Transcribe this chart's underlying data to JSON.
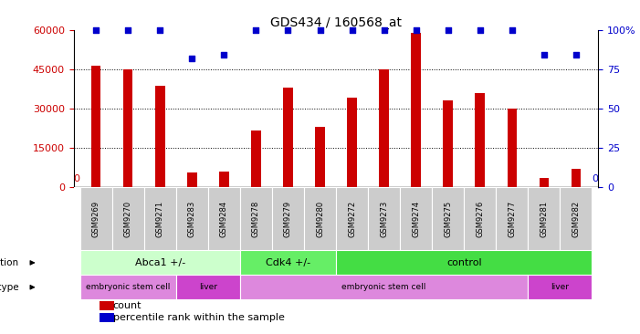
{
  "title": "GDS434 / 160568_at",
  "samples": [
    "GSM9269",
    "GSM9270",
    "GSM9271",
    "GSM9283",
    "GSM9284",
    "GSM9278",
    "GSM9279",
    "GSM9280",
    "GSM9272",
    "GSM9273",
    "GSM9274",
    "GSM9275",
    "GSM9276",
    "GSM9277",
    "GSM9281",
    "GSM9282"
  ],
  "counts": [
    46500,
    45000,
    38500,
    5500,
    6000,
    21500,
    38000,
    23000,
    34000,
    45000,
    59000,
    33000,
    36000,
    30000,
    3500,
    7000
  ],
  "percentiles": [
    100,
    100,
    100,
    82,
    84,
    100,
    100,
    100,
    100,
    100,
    100,
    100,
    100,
    100,
    84,
    84
  ],
  "bar_color": "#cc0000",
  "dot_color": "#0000cc",
  "ylim_left": [
    0,
    60000
  ],
  "ylim_right": [
    0,
    100
  ],
  "yticks_left": [
    0,
    15000,
    30000,
    45000,
    60000
  ],
  "ytick_labels_left": [
    "0",
    "15000",
    "30000",
    "45000",
    "60000"
  ],
  "yticks_right": [
    0,
    25,
    50,
    75,
    100
  ],
  "ytick_labels_right": [
    "0",
    "25",
    "50",
    "75",
    "100%"
  ],
  "genotype_groups": [
    {
      "label": "Abca1 +/-",
      "start": 0,
      "end": 4,
      "color": "#ccffcc"
    },
    {
      "label": "Cdk4 +/-",
      "start": 5,
      "end": 7,
      "color": "#66ee66"
    },
    {
      "label": "control",
      "start": 8,
      "end": 15,
      "color": "#44dd44"
    }
  ],
  "celltype_groups": [
    {
      "label": "embryonic stem cell",
      "start": 0,
      "end": 2,
      "color": "#dd88dd"
    },
    {
      "label": "liver",
      "start": 3,
      "end": 4,
      "color": "#cc44cc"
    },
    {
      "label": "embryonic stem cell",
      "start": 5,
      "end": 13,
      "color": "#dd88dd"
    },
    {
      "label": "liver",
      "start": 14,
      "end": 15,
      "color": "#cc44cc"
    }
  ],
  "legend_count_color": "#cc0000",
  "legend_dot_color": "#0000cc",
  "background_color": "#ffffff",
  "tick_label_color_left": "#cc0000",
  "tick_label_color_right": "#0000cc",
  "label_area_color": "#cccccc"
}
